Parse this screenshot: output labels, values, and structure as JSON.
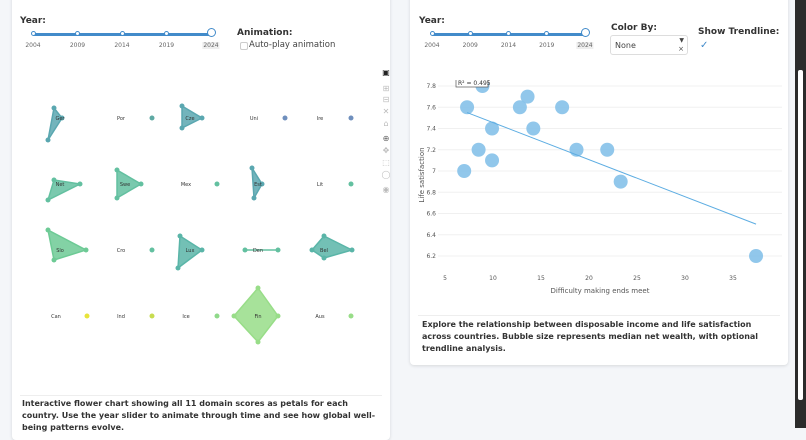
{
  "left": {
    "year_label": "Year:",
    "year_ticks": [
      "2004",
      "2009",
      "2014",
      "2019",
      "2024"
    ],
    "year_value": "2024",
    "animation_label": "Animation:",
    "autoplay_label": "Auto-play animation",
    "autoplay_checked": false,
    "modebar_icons": [
      "download-icon",
      "zoom-in-icon",
      "zoom-out-icon",
      "autoscale-icon",
      "home-icon",
      "zoom-icon",
      "pan-icon",
      "box-select-icon",
      "lasso-icon",
      "camera-icon"
    ],
    "countries": [
      "Ger",
      "Por",
      "Cze",
      "Uni",
      "Ire",
      "Net",
      "Swe",
      "Mex",
      "Est",
      "Lit",
      "Slo",
      "Cro",
      "Lux",
      "Den",
      "Bel",
      "Can",
      "Ind",
      "Ice",
      "Fin",
      "Aus"
    ],
    "description": "Interactive flower chart showing all 11 domain scores as petals for each country. Use the year slider to animate through time and see how global well-being patterns evolve."
  },
  "right": {
    "year_label": "Year:",
    "year_ticks": [
      "2004",
      "2009",
      "2014",
      "2019",
      "2024"
    ],
    "year_value": "2024",
    "color_by_label": "Color By:",
    "color_by_value": "None",
    "trendline_label": "Show Trendline:",
    "trendline_checked": true,
    "description": "Explore the relationship between disposable income and life satisfaction across countries. Bubble size represents median net wealth, with optional trendline analysis."
  },
  "chart_data": {
    "type": "scatter",
    "xlabel": "Difficulty making ends meet",
    "ylabel": "Life satisfaction",
    "xticks": [
      5,
      10,
      15,
      20,
      25,
      30,
      35
    ],
    "yticks": [
      6.2,
      6.4,
      6.6,
      6.8,
      7,
      7.2,
      7.4,
      7.6,
      7.8
    ],
    "ytick_labels": [
      "6.2",
      "6.4",
      "6.6",
      "6.8",
      "7",
      "7.2",
      "7.4",
      "7.6",
      "7.8"
    ],
    "points": [
      [
        7.3,
        7.6
      ],
      [
        8.9,
        7.8
      ],
      [
        9.9,
        7.4
      ],
      [
        8.5,
        7.2
      ],
      [
        9.9,
        7.1
      ],
      [
        7.0,
        7.0
      ],
      [
        12.8,
        7.6
      ],
      [
        13.6,
        7.7
      ],
      [
        14.2,
        7.4
      ],
      [
        17.2,
        7.6
      ],
      [
        18.7,
        7.2
      ],
      [
        21.9,
        7.2
      ],
      [
        23.3,
        6.9
      ],
      [
        37.4,
        6.2
      ]
    ],
    "trendline": [
      [
        7.3,
        7.55
      ],
      [
        37.4,
        6.5
      ]
    ],
    "r2_label": "R² = 0.495",
    "marker_color": "#85c1e9",
    "line_color": "#5dade2",
    "grid": true
  }
}
